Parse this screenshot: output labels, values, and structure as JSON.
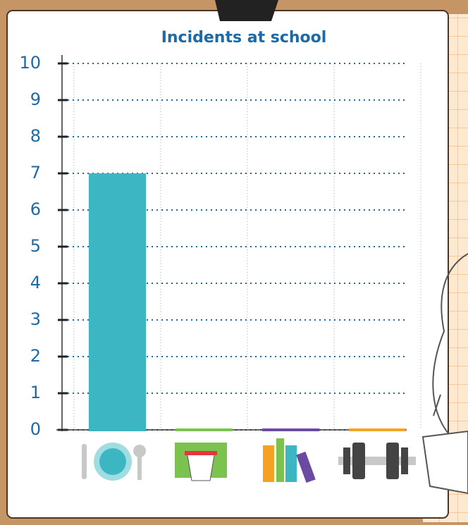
{
  "chart_data": {
    "type": "bar",
    "title": "Incidents at school",
    "categories": [
      null,
      null,
      null,
      null
    ],
    "values": [
      7,
      0,
      0,
      0
    ],
    "colors": [
      "#3cb6c2",
      "#7cc24e",
      "#6b4aa1",
      "#f4a224"
    ],
    "ylim": [
      0,
      10
    ],
    "yticks": [
      0,
      1,
      2,
      3,
      4,
      5,
      6,
      7,
      8,
      9,
      10
    ],
    "grid": true
  }
}
